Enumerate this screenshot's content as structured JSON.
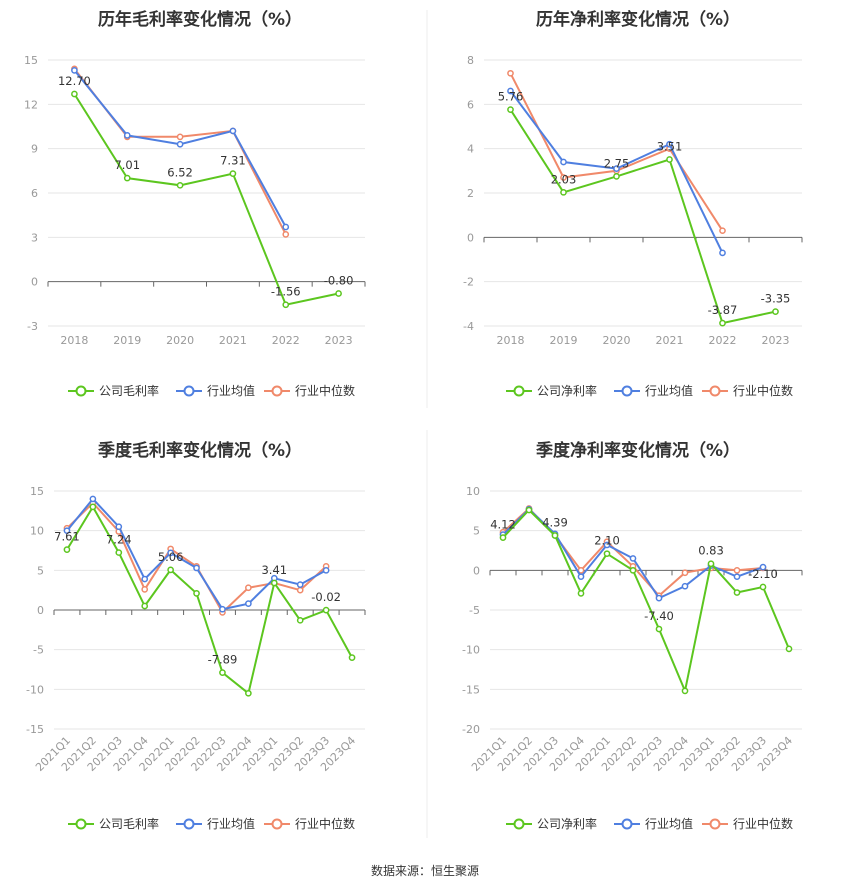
{
  "colors": {
    "company": "#5cc61f",
    "avg": "#4f7fe0",
    "median": "#f0896a"
  },
  "legend": [
    "公司毛利率",
    "行业均值",
    "行业中位数"
  ],
  "source": "数据来源：恒生聚源",
  "chart_data": [
    {
      "type": "line",
      "title": "历年毛利率变化情况（%）",
      "categories": [
        "2018",
        "2019",
        "2020",
        "2021",
        "2022",
        "2023"
      ],
      "ylim": [
        -3,
        15
      ],
      "yticks": [
        -3,
        0,
        3,
        6,
        9,
        12,
        15
      ],
      "legend": [
        "公司毛利率",
        "行业均值",
        "行业中位数"
      ],
      "series": [
        {
          "name": "公司毛利率",
          "values": [
            12.7,
            7.01,
            6.52,
            7.31,
            -1.56,
            -0.8
          ],
          "labels": [
            "12.70",
            "7.01",
            "6.52",
            "7.31",
            "-1.56",
            "-0.80"
          ]
        },
        {
          "name": "行业均值",
          "values": [
            14.3,
            9.9,
            9.3,
            10.2,
            3.7,
            null
          ]
        },
        {
          "name": "行业中位数",
          "values": [
            14.4,
            9.8,
            9.8,
            10.2,
            3.2,
            null
          ]
        }
      ]
    },
    {
      "type": "line",
      "title": "历年净利率变化情况（%）",
      "categories": [
        "2018",
        "2019",
        "2020",
        "2021",
        "2022",
        "2023"
      ],
      "ylim": [
        -4,
        8
      ],
      "yticks": [
        -4,
        -2,
        0,
        2,
        4,
        6,
        8
      ],
      "legend": [
        "公司净利率",
        "行业均值",
        "行业中位数"
      ],
      "series": [
        {
          "name": "公司净利率",
          "values": [
            5.76,
            2.03,
            2.75,
            3.51,
            -3.87,
            -3.35
          ],
          "labels": [
            "5.76",
            "2.03",
            "2.75",
            "3.51",
            "-3.87",
            "-3.35"
          ]
        },
        {
          "name": "行业均值",
          "values": [
            6.6,
            3.4,
            3.1,
            4.2,
            -0.7,
            null
          ]
        },
        {
          "name": "行业中位数",
          "values": [
            7.4,
            2.7,
            3.0,
            4.0,
            0.3,
            null
          ]
        }
      ]
    },
    {
      "type": "line",
      "title": "季度毛利率变化情况（%）",
      "categories": [
        "2021Q1",
        "2021Q2",
        "2021Q3",
        "2021Q4",
        "2022Q1",
        "2022Q2",
        "2022Q3",
        "2022Q4",
        "2023Q1",
        "2023Q2",
        "2023Q3",
        "2023Q4"
      ],
      "ylim": [
        -15,
        15
      ],
      "yticks": [
        -15,
        -10,
        -5,
        0,
        5,
        10,
        15
      ],
      "legend": [
        "公司毛利率",
        "行业均值",
        "行业中位数"
      ],
      "series": [
        {
          "name": "公司毛利率",
          "values": [
            7.61,
            13.0,
            7.24,
            0.5,
            5.06,
            2.1,
            -7.89,
            -10.5,
            3.41,
            -1.3,
            -0.02,
            -6.0
          ],
          "labels": [
            "7.61",
            "",
            "7.24",
            "",
            "5.06",
            "",
            "-7.89",
            "",
            "3.41",
            "",
            "-0.02",
            ""
          ]
        },
        {
          "name": "行业均值",
          "values": [
            10.0,
            14.0,
            10.5,
            3.9,
            7.2,
            5.3,
            0.1,
            0.8,
            4.0,
            3.2,
            5.0,
            null
          ]
        },
        {
          "name": "行业中位数",
          "values": [
            10.3,
            13.5,
            9.9,
            2.6,
            7.7,
            5.5,
            -0.3,
            2.8,
            3.4,
            2.5,
            5.5,
            null
          ]
        }
      ]
    },
    {
      "type": "line",
      "title": "季度净利率变化情况（%）",
      "categories": [
        "2021Q1",
        "2021Q2",
        "2021Q3",
        "2021Q4",
        "2022Q1",
        "2022Q2",
        "2022Q3",
        "2022Q4",
        "2023Q1",
        "2023Q2",
        "2023Q3",
        "2023Q4"
      ],
      "ylim": [
        -20,
        10
      ],
      "yticks": [
        -20,
        -15,
        -10,
        -5,
        0,
        5,
        10
      ],
      "legend": [
        "公司净利率",
        "行业均值",
        "行业中位数"
      ],
      "series": [
        {
          "name": "公司净利率",
          "values": [
            4.12,
            7.6,
            4.39,
            -2.9,
            2.1,
            0.0,
            -7.4,
            -15.2,
            0.83,
            -2.8,
            -2.1,
            -9.9
          ],
          "labels": [
            "4.12",
            "",
            "4.39",
            "",
            "2.10",
            "",
            "-7.40",
            "",
            "0.83",
            "",
            "-2.10",
            ""
          ]
        },
        {
          "name": "行业均值",
          "values": [
            4.5,
            7.7,
            4.6,
            -0.8,
            3.2,
            1.5,
            -3.5,
            -2.0,
            0.6,
            -0.8,
            0.4,
            null
          ]
        },
        {
          "name": "行业中位数",
          "values": [
            4.8,
            7.8,
            4.4,
            0.0,
            3.6,
            0.5,
            -3.2,
            -0.3,
            0.3,
            0.0,
            0.3,
            null
          ]
        }
      ]
    }
  ]
}
